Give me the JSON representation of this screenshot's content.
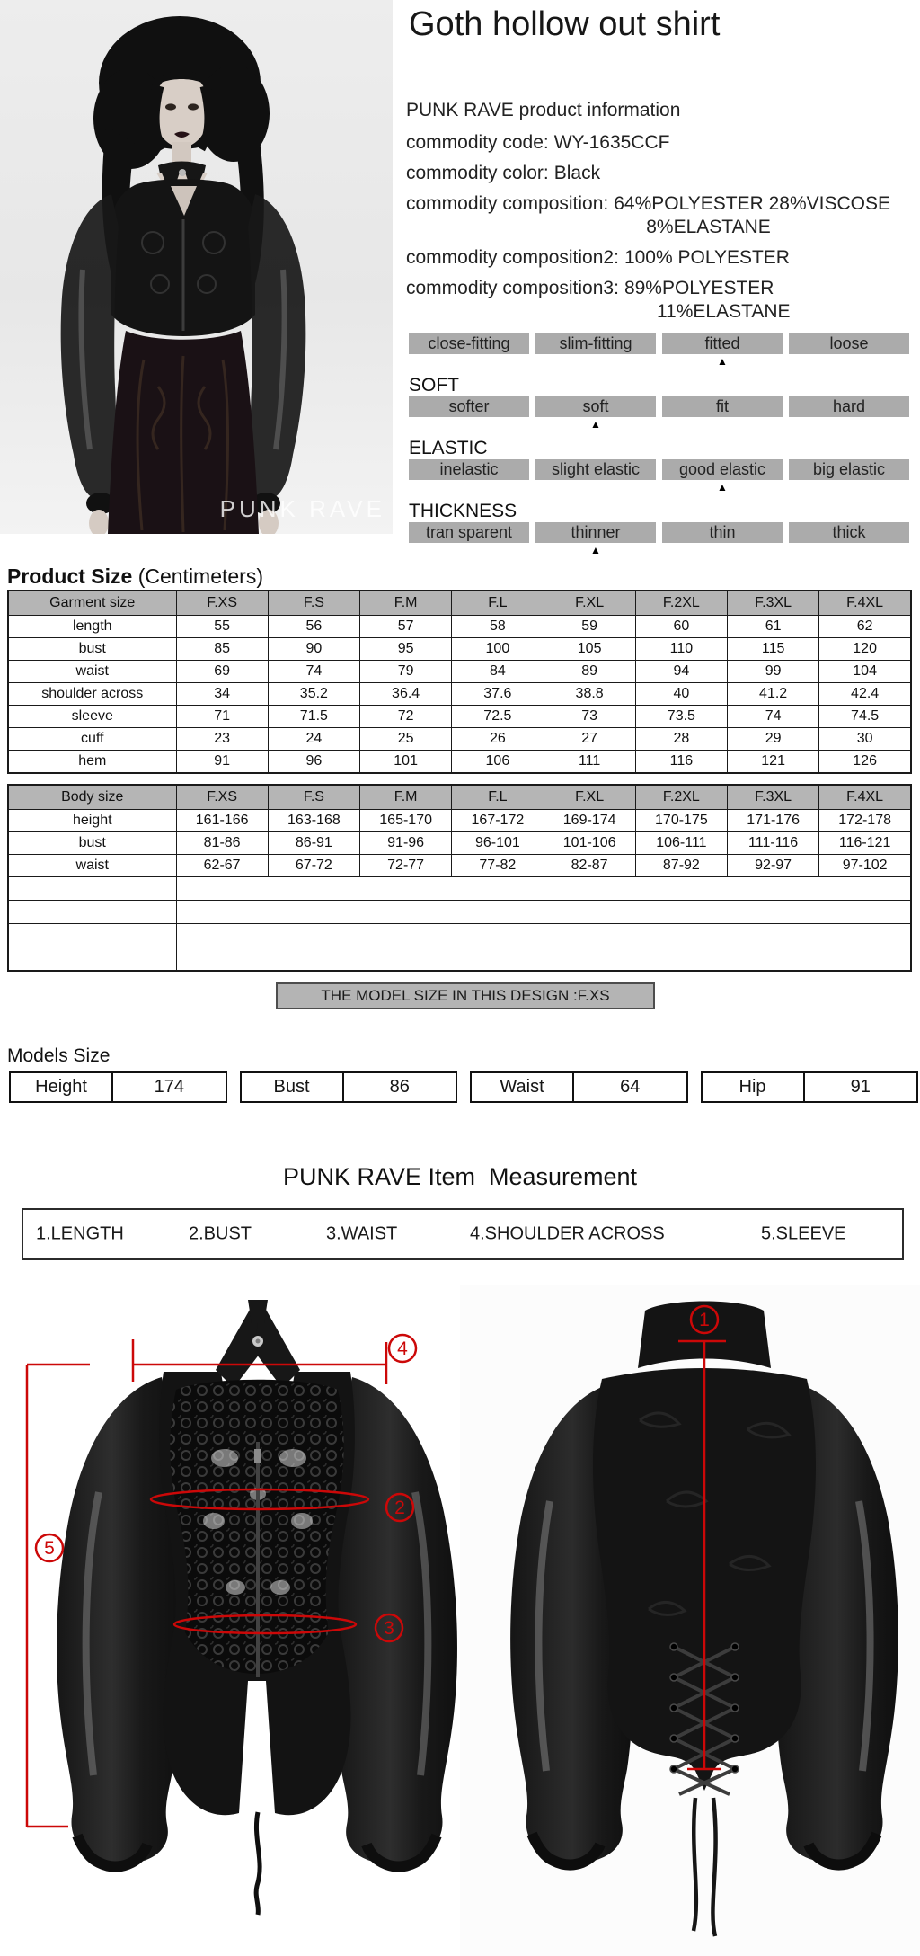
{
  "title": "Goth hollow out shirt",
  "photo": {
    "watermark": "PUNK RAVE"
  },
  "product_info": {
    "heading": "PUNK RAVE product information",
    "rows": [
      {
        "label": "commodity code:",
        "value": "WY-1635CCF"
      },
      {
        "label": "commodity color:",
        "value": "Black"
      },
      {
        "label": "commodity composition:",
        "value": "64%POLYESTER 28%VISCOSE",
        "value2": "8%ELASTANE"
      },
      {
        "label": "commodity composition2:",
        "value": "100% POLYESTER"
      },
      {
        "label": "commodity composition3:",
        "value": "89%POLYESTER",
        "value2": "11%ELASTANE"
      }
    ]
  },
  "ui": {
    "arrow_glyph": "▲"
  },
  "attributes": [
    {
      "label": "",
      "options": [
        "close-fitting",
        "slim-fitting",
        "fitted",
        "loose"
      ],
      "selected": 2
    },
    {
      "label": "SOFT",
      "options": [
        "softer",
        "soft",
        "fit",
        "hard"
      ],
      "selected": 1
    },
    {
      "label": "ELASTIC",
      "options": [
        "inelastic",
        "slight elastic",
        "good elastic",
        "big elastic"
      ],
      "selected": 2
    },
    {
      "label": "THICKNESS",
      "options": [
        "tran sparent",
        "thinner",
        "thin",
        "thick"
      ],
      "selected": 1
    }
  ],
  "size_section": {
    "title_bold": "Product Size",
    "title_normal": " (Centimeters)",
    "garment_table": {
      "header": [
        "Garment size",
        "F.XS",
        "F.S",
        "F.M",
        "F.L",
        "F.XL",
        "F.2XL",
        "F.3XL",
        "F.4XL"
      ],
      "rows": [
        [
          "length",
          "55",
          "56",
          "57",
          "58",
          "59",
          "60",
          "61",
          "62"
        ],
        [
          "bust",
          "85",
          "90",
          "95",
          "100",
          "105",
          "110",
          "115",
          "120"
        ],
        [
          "waist",
          "69",
          "74",
          "79",
          "84",
          "89",
          "94",
          "99",
          "104"
        ],
        [
          "shoulder across",
          "34",
          "35.2",
          "36.4",
          "37.6",
          "38.8",
          "40",
          "41.2",
          "42.4"
        ],
        [
          "sleeve",
          "71",
          "71.5",
          "72",
          "72.5",
          "73",
          "73.5",
          "74",
          "74.5"
        ],
        [
          "cuff",
          "23",
          "24",
          "25",
          "26",
          "27",
          "28",
          "29",
          "30"
        ],
        [
          "hem",
          "91",
          "96",
          "101",
          "106",
          "111",
          "116",
          "121",
          "126"
        ]
      ]
    },
    "body_table": {
      "header": [
        "Body size",
        "F.XS",
        "F.S",
        "F.M",
        "F.L",
        "F.XL",
        "F.2XL",
        "F.3XL",
        "F.4XL"
      ],
      "rows": [
        [
          "height",
          "161-166",
          "163-168",
          "165-170",
          "167-172",
          "169-174",
          "170-175",
          "171-176",
          "172-178"
        ],
        [
          "bust",
          "81-86",
          "86-91",
          "91-96",
          "96-101",
          "101-106",
          "106-111",
          "111-116",
          "116-121"
        ],
        [
          "waist",
          "62-67",
          "67-72",
          "72-77",
          "77-82",
          "82-87",
          "87-92",
          "92-97",
          "97-102"
        ]
      ],
      "empty_rows": 4
    },
    "model_size_note": "THE MODEL SIZE IN THIS DESIGN :F.XS"
  },
  "models_size": {
    "title": "Models Size",
    "items": [
      {
        "label": "Height",
        "value": "174"
      },
      {
        "label": "Bust",
        "value": "86"
      },
      {
        "label": "Waist",
        "value": "64"
      },
      {
        "label": "Hip",
        "value": "91"
      }
    ]
  },
  "measurement": {
    "heading": "PUNK RAVE Item  Measurement",
    "legend": [
      "1.LENGTH",
      "2.BUST",
      "3.WAIST",
      "4.SHOULDER ACROSS",
      "5.SLEEVE"
    ],
    "annotations": {
      "length": "1",
      "bust": "2",
      "waist": "3",
      "shoulder_across": "4",
      "sleeve": "5"
    },
    "red": "#cc0808"
  }
}
